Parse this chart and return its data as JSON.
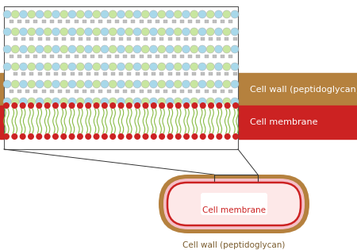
{
  "bg_color": "#ffffff",
  "brown_band_color": "#b5813e",
  "red_band_color": "#cc2222",
  "cell_wall_label": "Cell wall (peptidoglycan)",
  "cell_membrane_label": "Cell membrane",
  "cell_wall_label2": "Cell wall (peptidoglycan)",
  "cell_membrane_label2": "Cell membrane",
  "blue_circle_color": "#a8d8ea",
  "green_circle_color": "#c8e6a0",
  "chain_color": "#c0c0c0",
  "red_dot_color": "#cc2222",
  "lipid_color": "#88bb44",
  "pink_fill": "#f5c0c8",
  "pink_inner": "#fde8e8",
  "bacterium_outline": "#b5813e",
  "bacterium_inner_outline": "#cc2222",
  "white_rect": "#ffffff",
  "label_color_brown": "#7a5c2e",
  "label_color_red": "#cc2222",
  "zoom_line_color": "#333333"
}
